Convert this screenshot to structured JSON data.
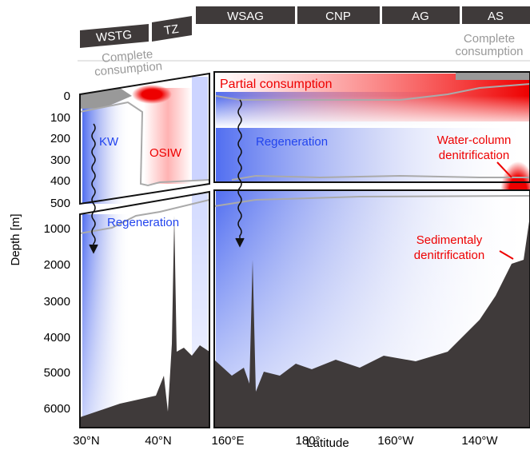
{
  "header_labels": [
    "WSTG",
    "TZ",
    "WSAG",
    "CNP",
    "AG",
    "AS"
  ],
  "complete_consumption_left": [
    "Complete",
    "consumption"
  ],
  "complete_consumption_right": [
    "Complete",
    "consumption"
  ],
  "annotations": {
    "partial": "Partial consumption",
    "kw": "KW",
    "osiw": "OSIW",
    "regeneration_upper": "Regeneration",
    "regeneration_lower": "Regeneration",
    "water_column": [
      "Water-column",
      "denitrification"
    ],
    "sediment": [
      "Sedimentaly",
      "denitrification"
    ]
  },
  "axes": {
    "y_label": "Depth [m]",
    "y_ticks": [
      "0",
      "100",
      "200",
      "300",
      "400",
      "500",
      "1000",
      "2000",
      "3000",
      "4000",
      "5000",
      "6000"
    ],
    "x_label": "Latitude",
    "x_ticks": [
      "30°N",
      "40°N",
      "160°E",
      "180°",
      "160°W",
      "140°W"
    ]
  }
}
